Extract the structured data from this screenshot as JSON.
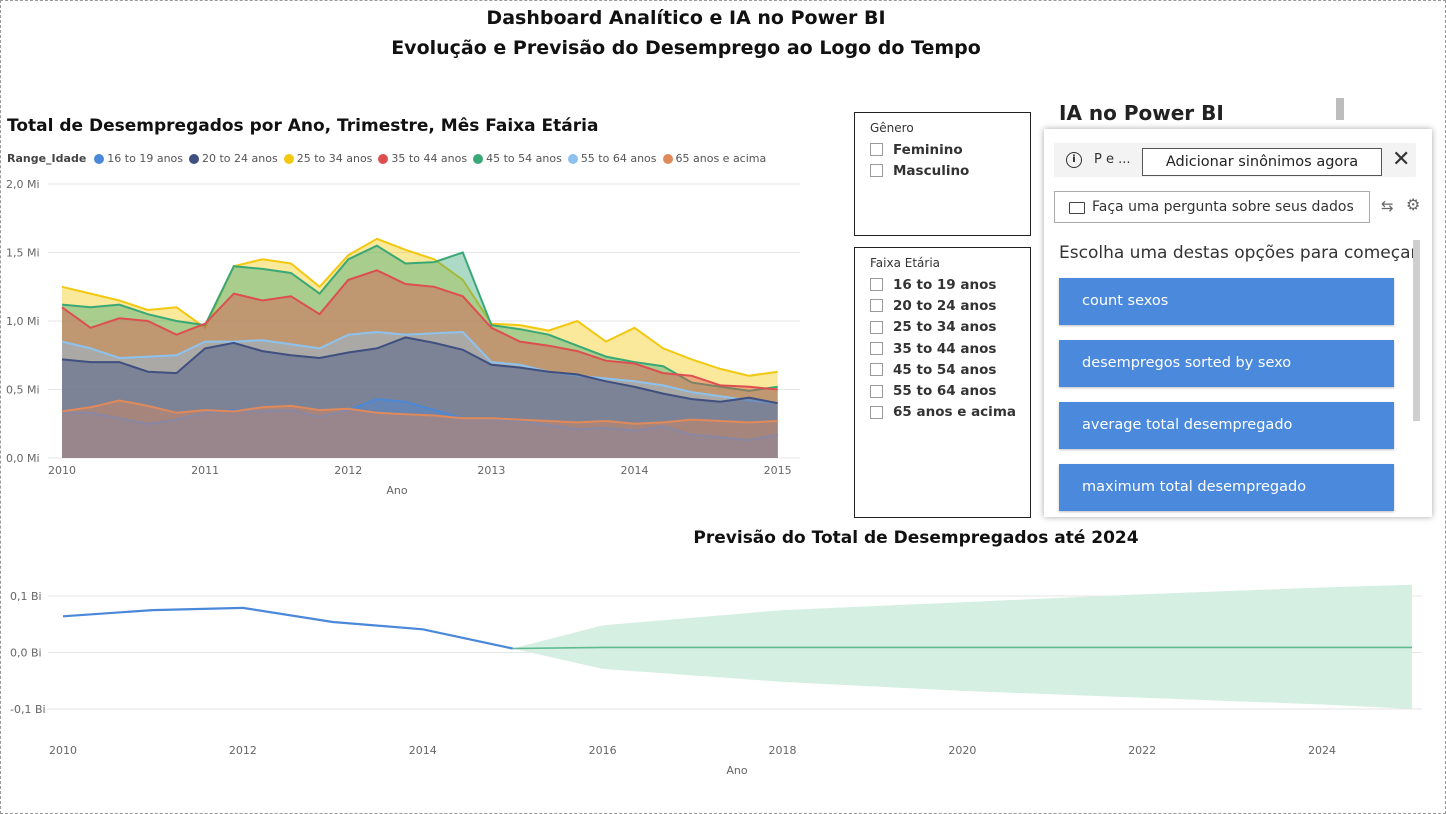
{
  "header": {
    "title": "Dashboard Analítico e IA no Power BI",
    "subtitle": "Evolução e Previsão do Desemprego ao Logo do Tempo"
  },
  "area_chart": {
    "title": "Total de Desempregados por Ano, Trimestre, Mês Faixa Etária",
    "legend_title": "Range_Idade",
    "y_ticks": [
      "2,0 Mi",
      "1,5 Mi",
      "1,0 Mi",
      "0,5 Mi",
      "0,0 Mi"
    ],
    "x_ticks": [
      "2010",
      "2011",
      "2012",
      "2013",
      "2014",
      "2015"
    ],
    "xlabel": "Ano"
  },
  "forecast_chart": {
    "title": "Previsão do Total de Desempregados até 2024",
    "y_ticks": [
      "0,1 Bi",
      "0,0 Bi",
      "-0,1 Bi"
    ],
    "x_ticks": [
      "2010",
      "2012",
      "2014",
      "2016",
      "2018",
      "2020",
      "2022",
      "2024"
    ],
    "xlabel": "Ano"
  },
  "chart_data": [
    {
      "type": "area",
      "title": "Total de Desempregados por Ano, Trimestre, Mês Faixa Etária",
      "xlabel": "Ano",
      "ylabel": "",
      "ylim": [
        0,
        2.0
      ],
      "xlim": [
        2010,
        2015.1
      ],
      "y_unit": "Mi",
      "legend_title": "Range_Idade",
      "legend_position": "top-left",
      "grid": true,
      "x": [
        2010.0,
        2010.2,
        2010.4,
        2010.6,
        2010.8,
        2011.0,
        2011.2,
        2011.4,
        2011.6,
        2011.8,
        2012.0,
        2012.2,
        2012.4,
        2012.6,
        2012.8,
        2013.0,
        2013.2,
        2013.4,
        2013.6,
        2013.8,
        2014.0,
        2014.2,
        2014.4,
        2014.6,
        2014.8,
        2015.0
      ],
      "series": [
        {
          "name": "16 to 19 anos",
          "color": "#4a88d9",
          "values": [
            0.33,
            0.33,
            0.29,
            0.25,
            0.28,
            0.33,
            0.35,
            0.34,
            0.35,
            0.3,
            0.35,
            0.43,
            0.41,
            0.35,
            0.29,
            0.28,
            0.27,
            0.24,
            0.21,
            0.22,
            0.2,
            0.23,
            0.17,
            0.15,
            0.13,
            0.17
          ]
        },
        {
          "name": "20 to 24 anos",
          "color": "#3f4f80",
          "values": [
            0.72,
            0.7,
            0.7,
            0.63,
            0.62,
            0.8,
            0.84,
            0.78,
            0.75,
            0.73,
            0.77,
            0.8,
            0.88,
            0.84,
            0.79,
            0.68,
            0.66,
            0.63,
            0.61,
            0.56,
            0.52,
            0.47,
            0.43,
            0.41,
            0.44,
            0.4
          ]
        },
        {
          "name": "25 to 34 anos",
          "color": "#f2c811",
          "values": [
            1.25,
            1.2,
            1.15,
            1.08,
            1.1,
            0.95,
            1.4,
            1.45,
            1.42,
            1.25,
            1.48,
            1.6,
            1.52,
            1.45,
            1.3,
            0.98,
            0.97,
            0.93,
            1.0,
            0.85,
            0.95,
            0.8,
            0.72,
            0.65,
            0.6,
            0.63
          ]
        },
        {
          "name": "35 to 44 anos",
          "color": "#dd4f4f",
          "values": [
            1.1,
            0.95,
            1.02,
            1.0,
            0.9,
            0.98,
            1.2,
            1.15,
            1.18,
            1.05,
            1.3,
            1.37,
            1.27,
            1.25,
            1.18,
            0.95,
            0.85,
            0.82,
            0.78,
            0.71,
            0.69,
            0.62,
            0.6,
            0.53,
            0.52,
            0.5
          ]
        },
        {
          "name": "45 to 54 anos",
          "color": "#3aa876",
          "values": [
            1.12,
            1.1,
            1.12,
            1.05,
            1.0,
            0.97,
            1.4,
            1.38,
            1.35,
            1.2,
            1.45,
            1.55,
            1.42,
            1.43,
            1.5,
            0.97,
            0.94,
            0.9,
            0.82,
            0.74,
            0.7,
            0.67,
            0.55,
            0.52,
            0.49,
            0.52
          ]
        },
        {
          "name": "55 to 64 anos",
          "color": "#8ec2ee",
          "values": [
            0.85,
            0.8,
            0.73,
            0.74,
            0.75,
            0.85,
            0.85,
            0.86,
            0.83,
            0.8,
            0.9,
            0.92,
            0.9,
            0.91,
            0.92,
            0.7,
            0.68,
            0.63,
            0.6,
            0.58,
            0.56,
            0.53,
            0.48,
            0.45,
            0.42,
            0.4
          ]
        },
        {
          "name": "65 anos e acima",
          "color": "#e0895a",
          "values": [
            0.34,
            0.37,
            0.42,
            0.38,
            0.33,
            0.35,
            0.34,
            0.37,
            0.38,
            0.35,
            0.36,
            0.33,
            0.32,
            0.31,
            0.29,
            0.29,
            0.28,
            0.27,
            0.26,
            0.27,
            0.25,
            0.26,
            0.28,
            0.27,
            0.26,
            0.27
          ]
        }
      ]
    },
    {
      "type": "line",
      "title": "Previsão do Total de Desempregados até 2024",
      "xlabel": "Ano",
      "ylabel": "",
      "ylim": [
        -0.1,
        0.1
      ],
      "xlim": [
        2010,
        2025
      ],
      "y_unit": "Bi",
      "grid": true,
      "series": [
        {
          "name": "",
          "color": "#4a88d9",
          "x": [
            2010,
            2011,
            2012,
            2013,
            2014,
            2015
          ],
          "values": [
            0.064,
            0.075,
            0.079,
            0.054,
            0.041,
            0.007
          ]
        },
        {
          "name": "",
          "color": "#5fba8f",
          "x": [
            2015,
            2016,
            2025
          ],
          "values": [
            0.007,
            0.009,
            0.009
          ]
        }
      ],
      "confidence_band": {
        "color": "#d6efe3",
        "x": [
          2015,
          2016,
          2018,
          2020,
          2022,
          2024,
          2025
        ],
        "upper": [
          0.007,
          0.048,
          0.075,
          0.089,
          0.103,
          0.115,
          0.12
        ],
        "lower": [
          0.007,
          -0.029,
          -0.052,
          -0.068,
          -0.08,
          -0.092,
          -0.1
        ]
      }
    }
  ],
  "slicer_genero": {
    "title": "Gênero",
    "options": [
      "Feminino",
      "Masculino"
    ]
  },
  "slicer_faixa": {
    "title": "Faixa Etária",
    "options": [
      "16 to 19 anos",
      "20 to 24 anos",
      "25 to 34 anos",
      "35 to 44 anos",
      "45 to 54 anos",
      "55 to 64 anos",
      "65 anos e acima"
    ]
  },
  "qa": {
    "title": "IA no Power BI",
    "info_icon": "info-icon",
    "truncated_text": "P e ...",
    "synonyms_button": "Adicionar sinônimos agora",
    "close_icon": "close-icon",
    "question_placeholder": "Faça uma pergunta sobre seus dados",
    "prompt": "Escolha uma destas opções para começar",
    "suggestions": [
      "count sexos",
      "desempregos sorted by sexo",
      "average total desempregado",
      "maximum total desempregado"
    ],
    "accent_color": "#4a89dc"
  }
}
